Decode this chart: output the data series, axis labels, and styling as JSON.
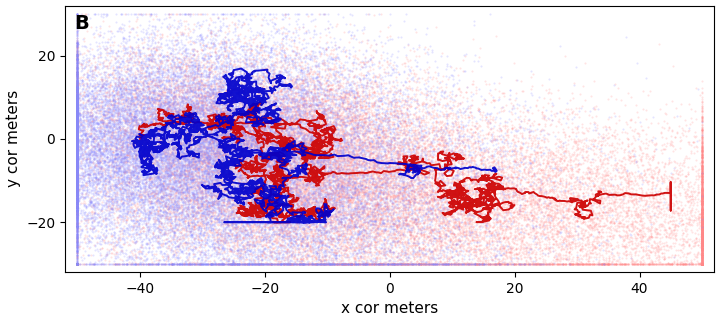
{
  "title": "B",
  "xlabel": "x cor meters",
  "ylabel": "y cor meters",
  "xlim": [
    -52,
    52
  ],
  "ylim": [
    -32,
    32
  ],
  "xticks": [
    -40,
    -20,
    0,
    20,
    40
  ],
  "yticks": [
    -20,
    0,
    20
  ],
  "background_color": "#ffffff",
  "team1_color": "#ff8888",
  "team2_color": "#8888ff",
  "centroid1_color": "#cc0000",
  "centroid2_color": "#0000cc",
  "n_players_per_team": 11,
  "n_steps": 3000,
  "seed": 42
}
